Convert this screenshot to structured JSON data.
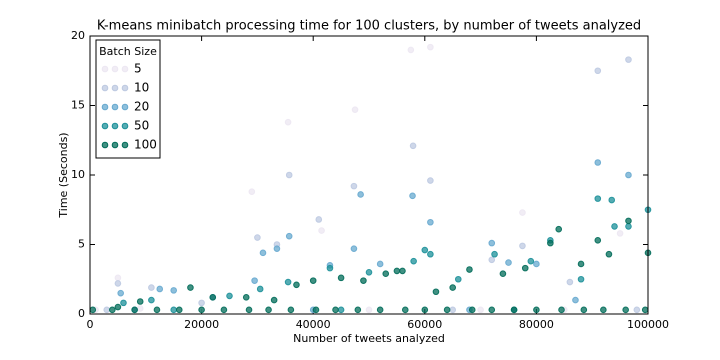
{
  "chart_data": {
    "type": "scatter",
    "title": "K-means minibatch processing time for 100 clusters, by number of tweets analyzed",
    "x_label": "Number of tweets analyzed",
    "y_label": "Time (Seconds)",
    "xlim": [
      0,
      100000
    ],
    "xticks": [
      0,
      20000,
      40000,
      60000,
      80000,
      100000
    ],
    "ylim": [
      0,
      20
    ],
    "yticks": [
      0,
      5,
      10,
      15,
      20
    ],
    "legend_title": "Batch Size",
    "legend_position": "upper left",
    "series": [
      {
        "name": "5",
        "color": "#ece7f2",
        "x": [
          1000,
          5000,
          9000,
          29000,
          35500,
          41500,
          47500,
          57500,
          61000,
          77500,
          95000,
          20000,
          50000,
          70000,
          85000
        ],
        "values": [
          0.3,
          2.6,
          0.4,
          8.8,
          13.8,
          6.0,
          14.7,
          19.0,
          19.2,
          7.3,
          5.8,
          0.3,
          0.3,
          0.3,
          0.3
        ]
      },
      {
        "name": "10",
        "color": "#bdc9e1",
        "x": [
          5000,
          11000,
          20000,
          30000,
          33500,
          35700,
          41000,
          47300,
          57900,
          61000,
          72000,
          77500,
          86000,
          91000,
          96500,
          3000,
          65000,
          98000
        ],
        "values": [
          2.2,
          1.9,
          0.8,
          5.5,
          5.0,
          10.0,
          6.8,
          9.2,
          12.1,
          9.6,
          3.9,
          4.9,
          2.3,
          17.5,
          18.3,
          0.3,
          0.3,
          0.3
        ]
      },
      {
        "name": "20",
        "color": "#67a9cf",
        "x": [
          5500,
          12500,
          15000,
          22000,
          29500,
          31000,
          33500,
          35700,
          43000,
          47300,
          48500,
          52000,
          57800,
          61000,
          72000,
          75000,
          80000,
          87000,
          91000,
          96500,
          8000,
          40000,
          68000
        ],
        "values": [
          1.5,
          1.8,
          1.7,
          1.2,
          2.4,
          4.4,
          4.7,
          5.6,
          3.5,
          4.7,
          8.6,
          3.6,
          8.5,
          6.6,
          5.1,
          3.7,
          3.6,
          1.0,
          10.9,
          10.0,
          0.3,
          0.3,
          0.3
        ]
      },
      {
        "name": "50",
        "color": "#1c9099",
        "x": [
          6000,
          11000,
          25000,
          30500,
          35500,
          43000,
          50000,
          58000,
          60000,
          61000,
          66000,
          72500,
          79000,
          82500,
          88000,
          91000,
          93500,
          94000,
          96500,
          100000,
          15000,
          45000,
          76000
        ],
        "values": [
          0.8,
          1.0,
          1.3,
          1.8,
          2.3,
          3.3,
          3.0,
          3.8,
          4.6,
          4.3,
          2.5,
          4.3,
          3.8,
          5.3,
          2.5,
          8.3,
          8.2,
          6.3,
          6.3,
          7.5,
          0.3,
          0.3,
          0.3
        ]
      },
      {
        "name": "100",
        "color": "#016c59",
        "x": [
          5000,
          9000,
          18000,
          22000,
          28000,
          33000,
          37000,
          40000,
          45000,
          49000,
          53000,
          55000,
          56000,
          62000,
          65000,
          68000,
          74000,
          78000,
          82500,
          84000,
          88000,
          91000,
          93000,
          96500,
          100000,
          500,
          4000,
          8000,
          12000,
          16000,
          20000,
          24000,
          28500,
          32000,
          36000,
          40500,
          44000,
          48000,
          52000,
          56500,
          60000,
          64000,
          68500,
          72000,
          76000,
          80000,
          84500,
          88500,
          92000,
          96000,
          99500
        ],
        "values": [
          0.5,
          0.9,
          1.9,
          1.2,
          1.2,
          1.0,
          2.1,
          2.4,
          2.6,
          2.4,
          2.9,
          3.1,
          3.1,
          1.6,
          1.9,
          3.2,
          2.9,
          3.3,
          5.1,
          6.1,
          3.6,
          5.3,
          4.3,
          6.7,
          4.4,
          0.3,
          0.3,
          0.3,
          0.3,
          0.3,
          0.3,
          0.3,
          0.3,
          0.3,
          0.3,
          0.3,
          0.3,
          0.3,
          0.3,
          0.3,
          0.3,
          0.3,
          0.3,
          0.3,
          0.3,
          0.3,
          0.3,
          0.3,
          0.3,
          0.3,
          0.3
        ]
      }
    ]
  }
}
